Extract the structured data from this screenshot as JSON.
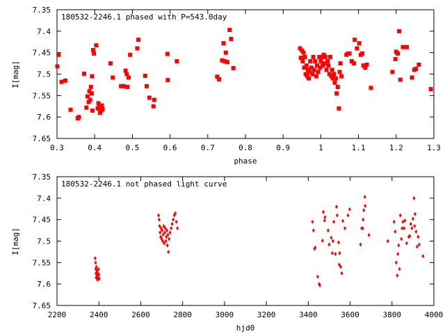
{
  "chart_data": [
    {
      "type": "scatter",
      "title": "180532-2246.1 phased with P=543.0day",
      "xlabel": "phase",
      "ylabel": "I[mag]",
      "xlim": [
        0.3,
        1.3
      ],
      "ylim": [
        7.35,
        7.65
      ],
      "y_inverted": true,
      "xticks": [
        "0.3",
        "0.4",
        "0.5",
        "0.6",
        "0.7",
        "0.8",
        "0.9",
        "1",
        "1.1",
        "1.2",
        "1.3"
      ],
      "yticks": [
        "7.35",
        "7.4",
        "7.45",
        "7.5",
        "7.55",
        "7.6",
        "7.65"
      ],
      "marker": "filled-square",
      "color": "#ff0000",
      "series": [
        {
          "points": [
            [
              0.301,
              7.482
            ],
            [
              0.304,
              7.455
            ],
            [
              0.312,
              7.518
            ],
            [
              0.322,
              7.515
            ],
            [
              0.336,
              7.583
            ],
            [
              0.355,
              7.603
            ],
            [
              0.358,
              7.6
            ],
            [
              0.372,
              7.499
            ],
            [
              0.378,
              7.578
            ],
            [
              0.381,
              7.552
            ],
            [
              0.384,
              7.565
            ],
            [
              0.386,
              7.54
            ],
            [
              0.388,
              7.56
            ],
            [
              0.39,
              7.53
            ],
            [
              0.392,
              7.545
            ],
            [
              0.393,
              7.505
            ],
            [
              0.394,
              7.585
            ],
            [
              0.396,
              7.444
            ],
            [
              0.398,
              7.452
            ],
            [
              0.404,
              7.433
            ],
            [
              0.408,
              7.58
            ],
            [
              0.41,
              7.568
            ],
            [
              0.412,
              7.575
            ],
            [
              0.414,
              7.59
            ],
            [
              0.415,
              7.578
            ],
            [
              0.417,
              7.585
            ],
            [
              0.419,
              7.573
            ],
            [
              0.421,
              7.582
            ],
            [
              0.442,
              7.475
            ],
            [
              0.448,
              7.508
            ],
            [
              0.47,
              7.528
            ],
            [
              0.477,
              7.528
            ],
            [
              0.482,
              7.492
            ],
            [
              0.485,
              7.5
            ],
            [
              0.487,
              7.53
            ],
            [
              0.49,
              7.508
            ],
            [
              0.494,
              7.455
            ],
            [
              0.513,
              7.44
            ],
            [
              0.516,
              7.42
            ],
            [
              0.534,
              7.504
            ],
            [
              0.538,
              7.528
            ],
            [
              0.545,
              7.555
            ],
            [
              0.556,
              7.575
            ],
            [
              0.558,
              7.56
            ],
            [
              0.593,
              7.453
            ],
            [
              0.594,
              7.514
            ],
            [
              0.618,
              7.47
            ],
            [
              0.725,
              7.506
            ],
            [
              0.73,
              7.512
            ],
            [
              0.738,
              7.468
            ],
            [
              0.742,
              7.428
            ],
            [
              0.745,
              7.47
            ],
            [
              0.748,
              7.45
            ],
            [
              0.752,
              7.472
            ],
            [
              0.758,
              7.397
            ],
            [
              0.762,
              7.418
            ],
            [
              0.768,
              7.486
            ],
            [
              0.945,
              7.44
            ],
            [
              0.947,
              7.462
            ],
            [
              0.95,
              7.445
            ],
            [
              0.952,
              7.47
            ],
            [
              0.954,
              7.45
            ],
            [
              0.956,
              7.485
            ],
            [
              0.958,
              7.46
            ],
            [
              0.96,
              7.5
            ],
            [
              0.962,
              7.48
            ],
            [
              0.964,
              7.505
            ],
            [
              0.966,
              7.49
            ],
            [
              0.968,
              7.51
            ],
            [
              0.97,
              7.495
            ],
            [
              0.972,
              7.47
            ],
            [
              0.975,
              7.485
            ],
            [
              0.978,
              7.5
            ],
            [
              0.98,
              7.46
            ],
            [
              0.982,
              7.49
            ],
            [
              0.985,
              7.47
            ],
            [
              0.988,
              7.505
            ],
            [
              0.99,
              7.48
            ],
            [
              0.993,
              7.495
            ],
            [
              0.996,
              7.46
            ],
            [
              0.998,
              7.485
            ],
            [
              1.0,
              7.47
            ],
            [
              1.003,
              7.46
            ],
            [
              1.005,
              7.48
            ],
            [
              1.008,
              7.455
            ],
            [
              1.01,
              7.475
            ],
            [
              1.012,
              7.46
            ],
            [
              1.015,
              7.49
            ],
            [
              1.018,
              7.47
            ],
            [
              1.02,
              7.48
            ],
            [
              1.023,
              7.5
            ],
            [
              1.025,
              7.46
            ],
            [
              1.028,
              7.505
            ],
            [
              1.03,
              7.49
            ],
            [
              1.032,
              7.51
            ],
            [
              1.035,
              7.5
            ],
            [
              1.037,
              7.52
            ],
            [
              1.04,
              7.51
            ],
            [
              1.042,
              7.545
            ],
            [
              1.045,
              7.53
            ],
            [
              1.048,
              7.58
            ],
            [
              1.05,
              7.495
            ],
            [
              1.052,
              7.475
            ],
            [
              1.055,
              7.505
            ],
            [
              1.068,
              7.455
            ],
            [
              1.072,
              7.452
            ],
            [
              1.076,
              7.452
            ],
            [
              1.082,
              7.47
            ],
            [
              1.088,
              7.475
            ],
            [
              1.09,
              7.42
            ],
            [
              1.096,
              7.44
            ],
            [
              1.102,
              7.428
            ],
            [
              1.106,
              7.455
            ],
            [
              1.11,
              7.452
            ],
            [
              1.113,
              7.48
            ],
            [
              1.118,
              7.485
            ],
            [
              1.122,
              7.478
            ],
            [
              1.133,
              7.532
            ],
            [
              1.19,
              7.495
            ],
            [
              1.198,
              7.465
            ],
            [
              1.2,
              7.448
            ],
            [
              1.204,
              7.452
            ],
            [
              1.208,
              7.4
            ],
            [
              1.211,
              7.513
            ],
            [
              1.218,
              7.437
            ],
            [
              1.228,
              7.437
            ],
            [
              1.242,
              7.508
            ],
            [
              1.248,
              7.49
            ],
            [
              1.252,
              7.488
            ],
            [
              1.26,
              7.478
            ],
            [
              1.292,
              7.535
            ]
          ]
        }
      ]
    },
    {
      "type": "scatter",
      "title": "180532-2246.1 not phased light curve",
      "xlabel": "hjd0",
      "ylabel": "I[mag]",
      "xlim": [
        2200,
        4000
      ],
      "ylim": [
        7.35,
        7.65
      ],
      "y_inverted": true,
      "xticks": [
        "2200",
        "2400",
        "2600",
        "2800",
        "3000",
        "3200",
        "3400",
        "3600",
        "3800",
        "4000"
      ],
      "yticks": [
        "7.35",
        "7.4",
        "7.45",
        "7.5",
        "7.55",
        "7.6",
        "7.65"
      ],
      "marker": "small-diamond",
      "color": "#ff0000",
      "series": [
        {
          "points": [
            [
              2382,
              7.54
            ],
            [
              2384,
              7.55
            ],
            [
              2385,
              7.565
            ],
            [
              2386,
              7.575
            ],
            [
              2387,
              7.585
            ],
            [
              2388,
              7.56
            ],
            [
              2390,
              7.58
            ],
            [
              2391,
              7.57
            ],
            [
              2393,
              7.59
            ],
            [
              2395,
              7.575
            ],
            [
              2396,
              7.585
            ],
            [
              2398,
              7.565
            ],
            [
              2400,
              7.578
            ],
            [
              2402,
              7.588
            ],
            [
              2685,
              7.44
            ],
            [
              2688,
              7.45
            ],
            [
              2690,
              7.465
            ],
            [
              2692,
              7.48
            ],
            [
              2695,
              7.49
            ],
            [
              2697,
              7.47
            ],
            [
              2700,
              7.495
            ],
            [
              2702,
              7.475
            ],
            [
              2705,
              7.5
            ],
            [
              2707,
              7.485
            ],
            [
              2710,
              7.465
            ],
            [
              2712,
              7.505
            ],
            [
              2715,
              7.48
            ],
            [
              2717,
              7.47
            ],
            [
              2720,
              7.5
            ],
            [
              2722,
              7.49
            ],
            [
              2725,
              7.475
            ],
            [
              2727,
              7.51
            ],
            [
              2730,
              7.485
            ],
            [
              2732,
              7.525
            ],
            [
              2735,
              7.495
            ],
            [
              2740,
              7.48
            ],
            [
              2745,
              7.47
            ],
            [
              2750,
              7.46
            ],
            [
              2755,
              7.45
            ],
            [
              2760,
              7.44
            ],
            [
              2765,
              7.435
            ],
            [
              2770,
              7.455
            ],
            [
              2775,
              7.47
            ],
            [
              3420,
              7.455
            ],
            [
              3425,
              7.475
            ],
            [
              3430,
              7.518
            ],
            [
              3433,
              7.515
            ],
            [
              3445,
              7.583
            ],
            [
              3452,
              7.6
            ],
            [
              3455,
              7.603
            ],
            [
              3468,
              7.499
            ],
            [
              3472,
              7.432
            ],
            [
              3478,
              7.452
            ],
            [
              3480,
              7.444
            ],
            [
              3495,
              7.475
            ],
            [
              3500,
              7.508
            ],
            [
              3510,
              7.492
            ],
            [
              3515,
              7.528
            ],
            [
              3518,
              7.5
            ],
            [
              3522,
              7.455
            ],
            [
              3530,
              7.53
            ],
            [
              3535,
              7.42
            ],
            [
              3538,
              7.44
            ],
            [
              3545,
              7.503
            ],
            [
              3548,
              7.555
            ],
            [
              3550,
              7.528
            ],
            [
              3555,
              7.56
            ],
            [
              3560,
              7.575
            ],
            [
              3565,
              7.453
            ],
            [
              3575,
              7.47
            ],
            [
              3590,
              7.44
            ],
            [
              3598,
              7.426
            ],
            [
              3650,
              7.508
            ],
            [
              3655,
              7.47
            ],
            [
              3660,
              7.47
            ],
            [
              3662,
              7.45
            ],
            [
              3665,
              7.428
            ],
            [
              3670,
              7.397
            ],
            [
              3672,
              7.418
            ],
            [
              3690,
              7.486
            ],
            [
              3780,
              7.5
            ],
            [
              3810,
              7.455
            ],
            [
              3815,
              7.478
            ],
            [
              3820,
              7.55
            ],
            [
              3825,
              7.58
            ],
            [
              3828,
              7.53
            ],
            [
              3832,
              7.51
            ],
            [
              3836,
              7.565
            ],
            [
              3840,
              7.44
            ],
            [
              3845,
              7.495
            ],
            [
              3848,
              7.47
            ],
            [
              3852,
              7.455
            ],
            [
              3858,
              7.47
            ],
            [
              3862,
              7.452
            ],
            [
              3870,
              7.505
            ],
            [
              3880,
              7.49
            ],
            [
              3885,
              7.488
            ],
            [
              3890,
              7.46
            ],
            [
              3895,
              7.47
            ],
            [
              3900,
              7.448
            ],
            [
              3905,
              7.4
            ],
            [
              3908,
              7.465
            ],
            [
              3910,
              7.437
            ],
            [
              3915,
              7.478
            ],
            [
              3920,
              7.513
            ],
            [
              3925,
              7.49
            ],
            [
              3930,
              7.508
            ],
            [
              3948,
              7.535
            ]
          ]
        }
      ]
    }
  ]
}
